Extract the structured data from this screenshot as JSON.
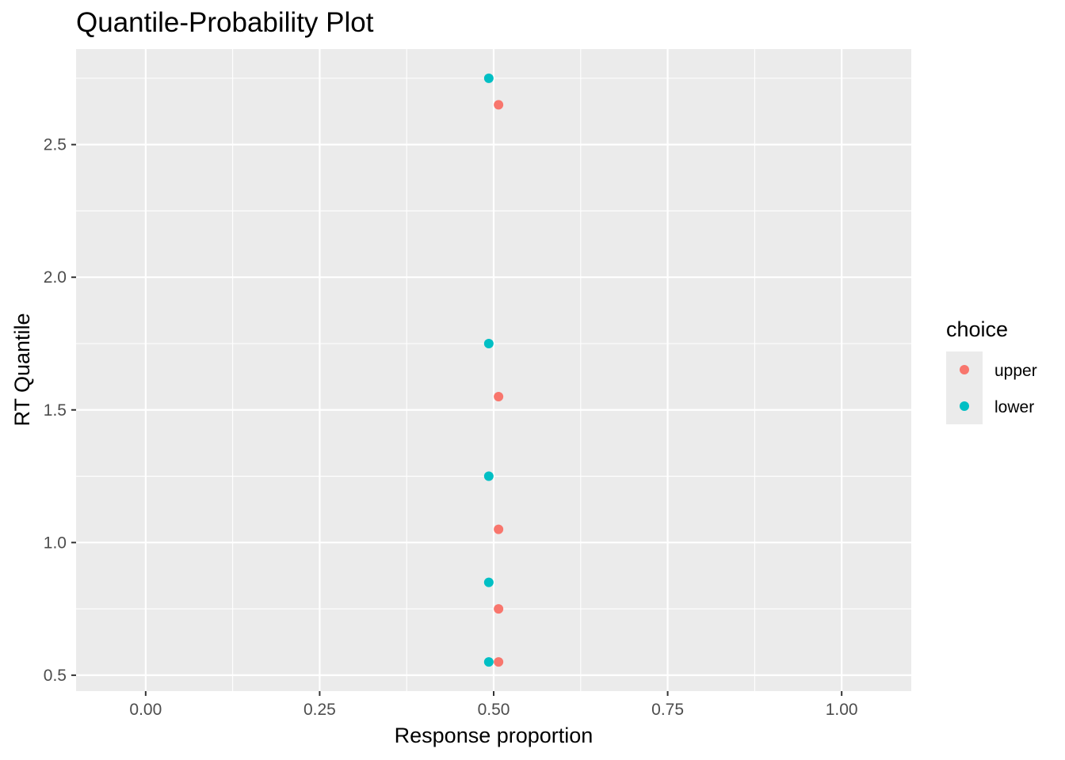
{
  "chart_data": {
    "type": "scatter",
    "title": "Quantile-Probability Plot",
    "xlabel": "Response proportion",
    "ylabel": "RT Quantile",
    "xlim": [
      -0.1,
      1.1
    ],
    "ylim": [
      0.44,
      2.86
    ],
    "x_ticks": [
      0.0,
      0.25,
      0.5,
      0.75,
      1.0
    ],
    "x_tick_labels": [
      "0.00",
      "0.25",
      "0.50",
      "0.75",
      "1.00"
    ],
    "y_ticks": [
      0.5,
      1.0,
      1.5,
      2.0,
      2.5
    ],
    "y_tick_labels": [
      "0.5",
      "1.0",
      "1.5",
      "2.0",
      "2.5"
    ],
    "grid": true,
    "background": "#ebebeb",
    "grid_color": "#ffffff",
    "legend": {
      "title": "choice",
      "placement": "right"
    },
    "series": [
      {
        "name": "upper",
        "color": "#f8766d",
        "points": [
          {
            "x": 0.507,
            "y": 2.65
          },
          {
            "x": 0.507,
            "y": 1.55
          },
          {
            "x": 0.507,
            "y": 1.05
          },
          {
            "x": 0.507,
            "y": 0.75
          },
          {
            "x": 0.507,
            "y": 0.55
          }
        ]
      },
      {
        "name": "lower",
        "color": "#00bfc4",
        "points": [
          {
            "x": 0.493,
            "y": 2.75
          },
          {
            "x": 0.493,
            "y": 1.75
          },
          {
            "x": 0.493,
            "y": 1.25
          },
          {
            "x": 0.493,
            "y": 0.85
          },
          {
            "x": 0.493,
            "y": 0.55
          }
        ]
      }
    ]
  }
}
